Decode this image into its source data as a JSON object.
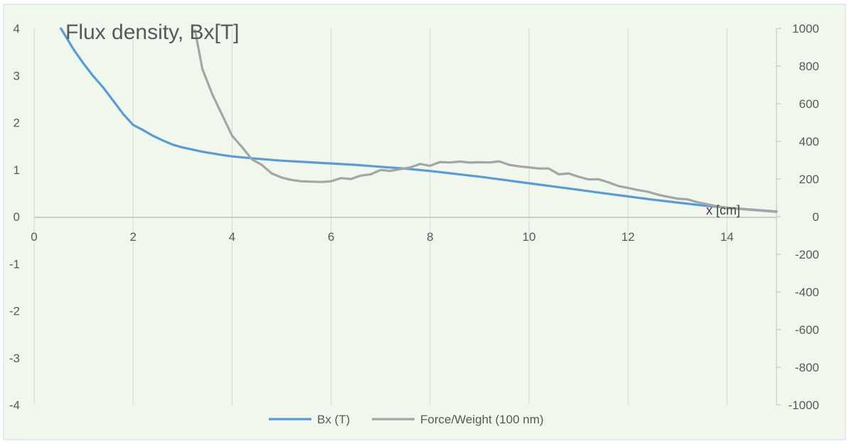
{
  "chart_data": {
    "type": "line",
    "title": "Flux density, Bx[T]",
    "xlabel": "x [cm]",
    "xlim": [
      0,
      15
    ],
    "ylim": [
      -4,
      4
    ],
    "y2lim": [
      -1000,
      1000
    ],
    "x_ticks": [
      "0",
      "2",
      "4",
      "6",
      "8",
      "10",
      "12",
      "14"
    ],
    "y_ticks": [
      "4",
      "3",
      "2",
      "1",
      "0",
      "-1",
      "-2",
      "-3",
      "-4"
    ],
    "y2_ticks": [
      "1000",
      "800",
      "600",
      "400",
      "200",
      "0",
      "-200",
      "-400",
      "-600",
      "-800",
      "-1000"
    ],
    "grid": "vertical",
    "legend_position": "bottom",
    "background": "#f0f7ec",
    "series": [
      {
        "name": "Bx (T)",
        "axis": "left",
        "color": "#5b9bd5",
        "points": [
          [
            0.54,
            4.0
          ],
          [
            0.8,
            3.55
          ],
          [
            1.0,
            3.25
          ],
          [
            1.2,
            2.98
          ],
          [
            1.4,
            2.74
          ],
          [
            1.6,
            2.46
          ],
          [
            1.8,
            2.18
          ],
          [
            2.0,
            1.95
          ],
          [
            2.2,
            1.84
          ],
          [
            2.4,
            1.72
          ],
          [
            2.6,
            1.62
          ],
          [
            2.8,
            1.53
          ],
          [
            3.0,
            1.47
          ],
          [
            3.4,
            1.38
          ],
          [
            3.8,
            1.31
          ],
          [
            4.0,
            1.28
          ],
          [
            4.4,
            1.24
          ],
          [
            5.0,
            1.19
          ],
          [
            5.5,
            1.16
          ],
          [
            6.0,
            1.13
          ],
          [
            6.5,
            1.1
          ],
          [
            7.0,
            1.06
          ],
          [
            7.5,
            1.02
          ],
          [
            8.0,
            0.97
          ],
          [
            8.5,
            0.91
          ],
          [
            9.0,
            0.85
          ],
          [
            9.5,
            0.78
          ],
          [
            10.0,
            0.71
          ],
          [
            10.5,
            0.64
          ],
          [
            11.0,
            0.57
          ],
          [
            11.5,
            0.5
          ],
          [
            12.0,
            0.43
          ],
          [
            12.5,
            0.36
          ],
          [
            13.0,
            0.3
          ],
          [
            13.5,
            0.24
          ],
          [
            14.0,
            0.19
          ],
          [
            14.5,
            0.15
          ],
          [
            15.0,
            0.11
          ]
        ]
      },
      {
        "name": "Force/Weight (100 nm)",
        "axis": "right",
        "color": "#a5a5a5",
        "points": [
          [
            3.25,
            990
          ],
          [
            3.4,
            785
          ],
          [
            3.6,
            650
          ],
          [
            3.8,
            540
          ],
          [
            4.0,
            430
          ],
          [
            4.2,
            370
          ],
          [
            4.4,
            305
          ],
          [
            4.6,
            275
          ],
          [
            4.8,
            230
          ],
          [
            5.0,
            208
          ],
          [
            5.2,
            195
          ],
          [
            5.4,
            188
          ],
          [
            5.6,
            186
          ],
          [
            5.8,
            184
          ],
          [
            6.0,
            188
          ],
          [
            6.2,
            205
          ],
          [
            6.4,
            200
          ],
          [
            6.6,
            218
          ],
          [
            6.8,
            225
          ],
          [
            7.0,
            248
          ],
          [
            7.2,
            243
          ],
          [
            7.4,
            252
          ],
          [
            7.6,
            262
          ],
          [
            7.8,
            280
          ],
          [
            8.0,
            270
          ],
          [
            8.2,
            290
          ],
          [
            8.4,
            288
          ],
          [
            8.6,
            293
          ],
          [
            8.8,
            287
          ],
          [
            9.0,
            289
          ],
          [
            9.2,
            288
          ],
          [
            9.4,
            294
          ],
          [
            9.6,
            275
          ],
          [
            9.8,
            267
          ],
          [
            10.0,
            262
          ],
          [
            10.2,
            256
          ],
          [
            10.4,
            256
          ],
          [
            10.6,
            225
          ],
          [
            10.8,
            230
          ],
          [
            11.0,
            212
          ],
          [
            11.2,
            198
          ],
          [
            11.4,
            199
          ],
          [
            11.6,
            183
          ],
          [
            11.8,
            163
          ],
          [
            12.0,
            153
          ],
          [
            12.2,
            141
          ],
          [
            12.4,
            133
          ],
          [
            12.6,
            117
          ],
          [
            12.8,
            106
          ],
          [
            13.0,
            96
          ],
          [
            13.2,
            92
          ],
          [
            13.4,
            77
          ],
          [
            13.6,
            66
          ],
          [
            13.8,
            55
          ],
          [
            14.0,
            48
          ],
          [
            14.2,
            43
          ],
          [
            14.4,
            38
          ],
          [
            14.6,
            34
          ],
          [
            14.8,
            30
          ],
          [
            15.0,
            26
          ]
        ]
      }
    ]
  }
}
